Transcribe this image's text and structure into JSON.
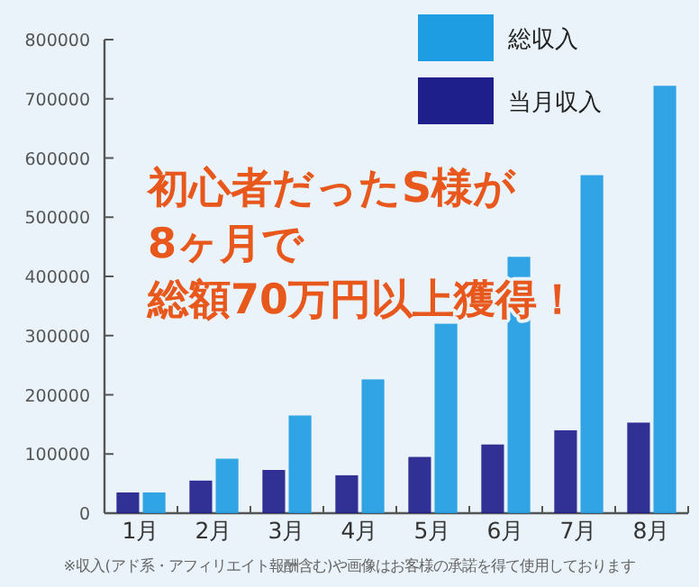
{
  "chart_data": {
    "type": "bar",
    "title": "初心者だったS様が",
    "subtitle": "8ヶ月で",
    "categories": [
      "1月",
      "2月",
      "3月",
      "4月",
      "5月",
      "6月",
      "7月",
      "8月"
    ],
    "series": [
      {
        "name": "当月収入",
        "color": "#1f1f8c",
        "values": [
          35000,
          55000,
          73000,
          64000,
          95000,
          116000,
          140000,
          153000
        ]
      },
      {
        "name": "総収入",
        "color": "#1f9de2",
        "values": [
          35000,
          92000,
          165000,
          226000,
          320000,
          433000,
          571000,
          722000
        ]
      }
    ],
    "ylim": [
      0,
      800000
    ],
    "yticks": [
      0,
      100000,
      200000,
      300000,
      400000,
      500000,
      600000,
      700000,
      800000
    ],
    "grid": false,
    "legend": "top right",
    "annotations": [
      "総額70万円以上獲得！",
      "※収入(アド系・アフィリエイト報酬含む)や画像はお客様の承諾を得て使用しております"
    ]
  }
}
